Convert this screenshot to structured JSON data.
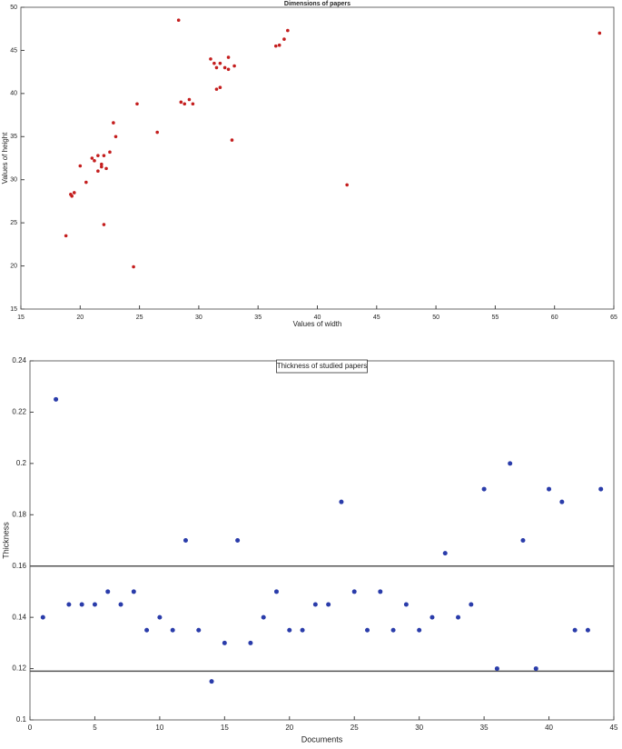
{
  "chart_data": [
    {
      "type": "scatter",
      "title": "Dimensions of papers",
      "x_label": "Values of width",
      "y_label": "Values of height",
      "xlim": [
        15,
        65
      ],
      "ylim": [
        15,
        50
      ],
      "xticks": [
        15,
        20,
        25,
        30,
        35,
        40,
        45,
        50,
        55,
        60,
        65
      ],
      "yticks": [
        15,
        20,
        25,
        30,
        35,
        40,
        45,
        50
      ],
      "color": "#c41e1e",
      "x": [
        18.8,
        19.2,
        19.5,
        19.3,
        20,
        20.5,
        21,
        21.2,
        21.5,
        21.8,
        21.5,
        22,
        22.2,
        22.5,
        21.8,
        22,
        22.8,
        23,
        24.5,
        24.8,
        26.5,
        28.3,
        28.5,
        28.8,
        29.2,
        29.5,
        31,
        31.3,
        31.5,
        31.8,
        31.5,
        31.8,
        32.2,
        32.5,
        32.5,
        33,
        32.8,
        36.5,
        36.8,
        37.2,
        37.5,
        42.5,
        63.8
      ],
      "values": [
        23.5,
        28.3,
        28.5,
        28.1,
        31.6,
        29.7,
        32.5,
        32.2,
        31,
        31.5,
        32.8,
        32.8,
        31.3,
        33.2,
        31.8,
        24.8,
        36.6,
        35,
        19.9,
        38.8,
        35.5,
        48.5,
        39,
        38.8,
        39.3,
        38.8,
        44,
        43.5,
        43,
        43.5,
        40.5,
        40.7,
        43,
        42.8,
        44.2,
        43.2,
        34.6,
        45.5,
        45.6,
        46.3,
        47.3,
        29.4,
        47
      ]
    },
    {
      "type": "scatter",
      "title": "Thickness of studied papers",
      "x_label": "Documents",
      "y_label": "Thickness",
      "xlim": [
        0,
        45
      ],
      "ylim": [
        0.1,
        0.24
      ],
      "xticks": [
        0,
        5,
        10,
        15,
        20,
        25,
        30,
        35,
        40,
        45
      ],
      "yticks": [
        0.1,
        0.12,
        0.14,
        0.16,
        0.18,
        0.2,
        0.22,
        0.24
      ],
      "color": "#2a3caa",
      "hlines": [
        0.16,
        0.119
      ],
      "x": [
        1,
        2,
        3,
        4,
        5,
        6,
        7,
        8,
        9,
        10,
        11,
        12,
        13,
        14,
        15,
        16,
        17,
        18,
        19,
        20,
        21,
        22,
        23,
        24,
        25,
        26,
        27,
        28,
        29,
        30,
        31,
        32,
        33,
        34,
        35,
        36,
        37,
        38,
        39,
        40,
        41,
        42,
        43,
        44
      ],
      "values": [
        0.14,
        0.225,
        0.145,
        0.145,
        0.145,
        0.15,
        0.145,
        0.15,
        0.135,
        0.14,
        0.135,
        0.17,
        0.135,
        0.115,
        0.13,
        0.17,
        0.13,
        0.14,
        0.15,
        0.135,
        0.135,
        0.145,
        0.145,
        0.185,
        0.15,
        0.135,
        0.15,
        0.135,
        0.145,
        0.135,
        0.14,
        0.165,
        0.14,
        0.145,
        0.19,
        0.12,
        0.2,
        0.17,
        0.12,
        0.19,
        0.185,
        0.135,
        0.135,
        0.19
      ]
    }
  ]
}
